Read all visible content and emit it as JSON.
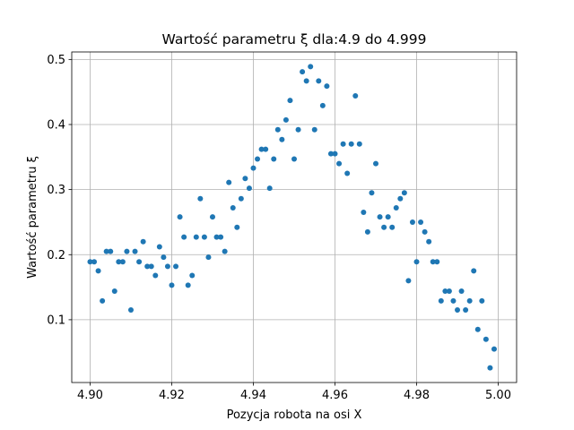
{
  "chart_data": {
    "type": "scatter",
    "title": "Wartość parametru ξ dla:4.9 do 4.999",
    "xlabel": "Pozycja robota na osi X",
    "ylabel": "Wartość parametru ξ",
    "xlim": [
      4.8955,
      5.0045
    ],
    "ylim": [
      0.0035,
      0.5115
    ],
    "xticks": [
      4.9,
      4.92,
      4.94,
      4.96,
      4.98,
      5.0
    ],
    "xtick_labels": [
      "4.90",
      "4.92",
      "4.94",
      "4.96",
      "4.98",
      "5.00"
    ],
    "yticks": [
      0.1,
      0.2,
      0.3,
      0.4,
      0.5
    ],
    "ytick_labels": [
      "0.1",
      "0.2",
      "0.3",
      "0.4",
      "0.5"
    ],
    "grid": true,
    "marker_color": "#1f77b4",
    "x": [
      4.9,
      4.901,
      4.902,
      4.903,
      4.904,
      4.905,
      4.906,
      4.907,
      4.908,
      4.909,
      4.91,
      4.911,
      4.912,
      4.913,
      4.914,
      4.915,
      4.916,
      4.917,
      4.918,
      4.919,
      4.92,
      4.921,
      4.922,
      4.923,
      4.924,
      4.925,
      4.926,
      4.927,
      4.928,
      4.929,
      4.93,
      4.931,
      4.932,
      4.933,
      4.934,
      4.935,
      4.936,
      4.937,
      4.938,
      4.939,
      4.94,
      4.941,
      4.942,
      4.943,
      4.944,
      4.945,
      4.946,
      4.947,
      4.948,
      4.949,
      4.95,
      4.951,
      4.952,
      4.953,
      4.954,
      4.955,
      4.956,
      4.957,
      4.958,
      4.959,
      4.96,
      4.961,
      4.962,
      4.963,
      4.964,
      4.965,
      4.966,
      4.967,
      4.968,
      4.969,
      4.97,
      4.971,
      4.972,
      4.973,
      4.974,
      4.975,
      4.976,
      4.977,
      4.978,
      4.979,
      4.98,
      4.981,
      4.982,
      4.983,
      4.984,
      4.985,
      4.986,
      4.987,
      4.988,
      4.989,
      4.99,
      4.991,
      4.992,
      4.993,
      4.994,
      4.995,
      4.996,
      4.997,
      4.998,
      4.999
    ],
    "y": [
      0.189,
      0.189,
      0.175,
      0.129,
      0.205,
      0.205,
      0.144,
      0.189,
      0.189,
      0.205,
      0.115,
      0.205,
      0.189,
      0.22,
      0.182,
      0.182,
      0.168,
      0.212,
      0.196,
      0.182,
      0.153,
      0.182,
      0.258,
      0.227,
      0.153,
      0.168,
      0.227,
      0.286,
      0.227,
      0.196,
      0.258,
      0.227,
      0.227,
      0.205,
      0.311,
      0.272,
      0.242,
      0.286,
      0.317,
      0.302,
      0.333,
      0.347,
      0.362,
      0.362,
      0.302,
      0.347,
      0.392,
      0.377,
      0.407,
      0.437,
      0.347,
      0.392,
      0.481,
      0.467,
      0.489,
      0.392,
      0.467,
      0.429,
      0.459,
      0.355,
      0.355,
      0.34,
      0.37,
      0.325,
      0.37,
      0.444,
      0.37,
      0.265,
      0.235,
      0.295,
      0.34,
      0.258,
      0.242,
      0.258,
      0.242,
      0.272,
      0.286,
      0.295,
      0.16,
      0.25,
      0.189,
      0.25,
      0.235,
      0.22,
      0.189,
      0.189,
      0.129,
      0.144,
      0.144,
      0.129,
      0.115,
      0.144,
      0.115,
      0.129,
      0.175,
      0.085,
      0.129,
      0.07,
      0.026,
      0.055
    ]
  }
}
